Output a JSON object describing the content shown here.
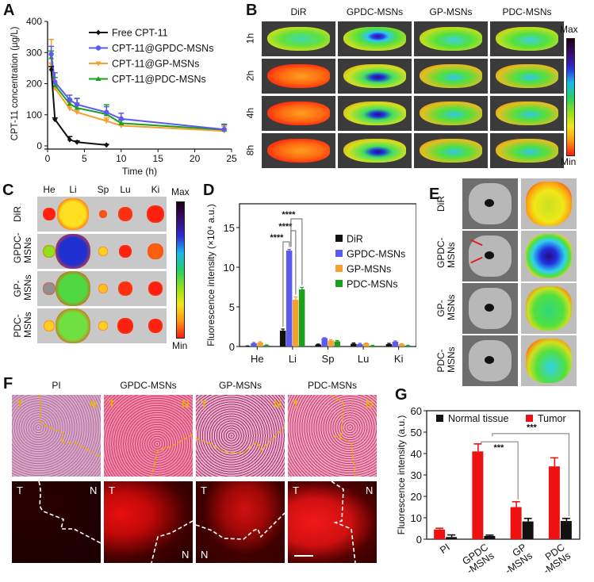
{
  "panels": {
    "A": "A",
    "B": "B",
    "C": "C",
    "D": "D",
    "E": "E",
    "F": "F",
    "G": "G"
  },
  "colorbar": {
    "max": "Max",
    "min": "Min"
  },
  "chart_data": [
    {
      "id": "A",
      "type": "line",
      "title": "",
      "xlabel": "Time (h)",
      "ylabel": "CPT-11 concentration (µg/L)",
      "xlim": [
        0,
        25
      ],
      "ylim": [
        0,
        400
      ],
      "xticks": [
        0,
        5,
        10,
        15,
        20,
        25
      ],
      "yticks": [
        0,
        100,
        200,
        300,
        400
      ],
      "legend_position": "top-right",
      "series": [
        {
          "name": "Free CPT-11",
          "color": "#111111",
          "marker": "diamond",
          "x": [
            0.5,
            1,
            3,
            4,
            8
          ],
          "y": [
            245,
            85,
            20,
            12,
            3
          ],
          "err": [
            10,
            5,
            10,
            4,
            2
          ]
        },
        {
          "name": "CPT-11@GPDC-MSNs",
          "color": "#5b5bf0",
          "marker": "circle",
          "x": [
            0.5,
            1,
            3,
            4,
            8,
            10,
            24
          ],
          "y": [
            295,
            205,
            148,
            133,
            108,
            87,
            53
          ],
          "err": [
            25,
            30,
            15,
            20,
            18,
            18,
            15
          ]
        },
        {
          "name": "CPT-11@GP-MSNs",
          "color": "#f5a030",
          "marker": "triangle-down",
          "x": [
            0.5,
            1,
            3,
            4,
            8,
            10,
            24
          ],
          "y": [
            262,
            185,
            120,
            108,
            80,
            65,
            48
          ],
          "err": [
            80,
            15,
            20,
            30,
            10,
            20,
            15
          ]
        },
        {
          "name": "CPT-11@PDC-MSNs",
          "color": "#1aa01a",
          "marker": "triangle-up",
          "x": [
            0.5,
            1,
            3,
            4,
            8,
            10,
            24
          ],
          "y": [
            285,
            195,
            135,
            122,
            102,
            73,
            52
          ],
          "err": [
            20,
            25,
            15,
            30,
            30,
            10,
            18
          ]
        }
      ]
    },
    {
      "id": "D",
      "type": "bar",
      "title": "",
      "xlabel": "",
      "ylabel": "Fluorescence intensity (×10⁴ a.u.)",
      "ylim": [
        0,
        18
      ],
      "yticks": [
        0,
        5,
        10,
        15
      ],
      "categories": [
        "He",
        "Li",
        "Sp",
        "Lu",
        "Ki"
      ],
      "legend_position": "center-right",
      "series": [
        {
          "name": "DiR",
          "color": "#111111",
          "values": [
            0.05,
            2.0,
            0.25,
            0.35,
            0.3
          ],
          "err": [
            0.02,
            0.2,
            0.05,
            0.1,
            0.1
          ]
        },
        {
          "name": "GPDC-MSNs",
          "color": "#5b5bf0",
          "values": [
            0.4,
            12.1,
            1.05,
            0.3,
            0.6
          ],
          "err": [
            0.1,
            0.15,
            0.05,
            0.1,
            0.1
          ]
        },
        {
          "name": "GP-MSNs",
          "color": "#f5a030",
          "values": [
            0.5,
            5.9,
            0.75,
            0.4,
            0.3
          ],
          "err": [
            0.1,
            0.35,
            0.1,
            0.05,
            0.05
          ]
        },
        {
          "name": "PDC-MSNs",
          "color": "#1aa01a",
          "values": [
            0.15,
            7.2,
            0.65,
            0.1,
            0.1
          ],
          "err": [
            0.05,
            0.25,
            0.1,
            0.05,
            0.05
          ]
        }
      ],
      "annotations": [
        {
          "text": "****",
          "from": "Li:DiR",
          "to": "Li:GPDC-MSNs"
        },
        {
          "text": "****",
          "from": "Li:GPDC-MSNs",
          "to": "Li:GP-MSNs"
        },
        {
          "text": "****",
          "from": "Li:GPDC-MSNs",
          "to": "Li:PDC-MSNs"
        }
      ]
    },
    {
      "id": "G",
      "type": "bar",
      "title": "",
      "xlabel": "",
      "ylabel": "Fluorescence intensity (a.u.)",
      "ylim": [
        0,
        60
      ],
      "yticks": [
        0,
        10,
        20,
        30,
        40,
        50,
        60
      ],
      "categories": [
        "PI",
        "GPDC\n-MSNs",
        "GP\n-MSNs",
        "PDC\n-MSNs"
      ],
      "legend_position": "top",
      "series": [
        {
          "name": "Tumor",
          "color": "#ee1111",
          "values": [
            4.5,
            41,
            15,
            34
          ],
          "err": [
            0.6,
            3.5,
            2.5,
            4
          ]
        },
        {
          "name": "Normal tissue",
          "color": "#111111",
          "values": [
            1.0,
            1.5,
            8.3,
            8.5
          ],
          "err": [
            1.0,
            0.4,
            1.4,
            1.2
          ]
        }
      ],
      "annotations": [
        {
          "text": "***",
          "from": "GPDC-MSNs:Tumor",
          "to": "GP-MSNs:Tumor"
        },
        {
          "text": "***",
          "from": "GPDC-MSNs:Tumor",
          "to": "PDC-MSNs:Normal tissue"
        }
      ]
    }
  ],
  "panelB": {
    "columns": [
      "DiR",
      "GPDC-MSNs",
      "GP-MSNs",
      "PDC-MSNs"
    ],
    "rows": [
      "1h",
      "2h",
      "4h",
      "8h"
    ]
  },
  "panelC": {
    "columns": [
      "He",
      "Li",
      "Sp",
      "Lu",
      "Ki"
    ],
    "rows": [
      "DiR",
      "GPDC-\nMSNs",
      "GP-\nMSNs",
      "PDC-\nMSNs"
    ]
  },
  "panelE": {
    "rows": [
      "DiR",
      "GPDC-\nMSNs",
      "GP-\nMSNs",
      "PDC-\nMSNs"
    ]
  },
  "panelF": {
    "columns": [
      "PI",
      "GPDC-MSNs",
      "GP-MSNs",
      "PDC-MSNs"
    ],
    "tumor_label": "T",
    "normal_label": "N"
  }
}
